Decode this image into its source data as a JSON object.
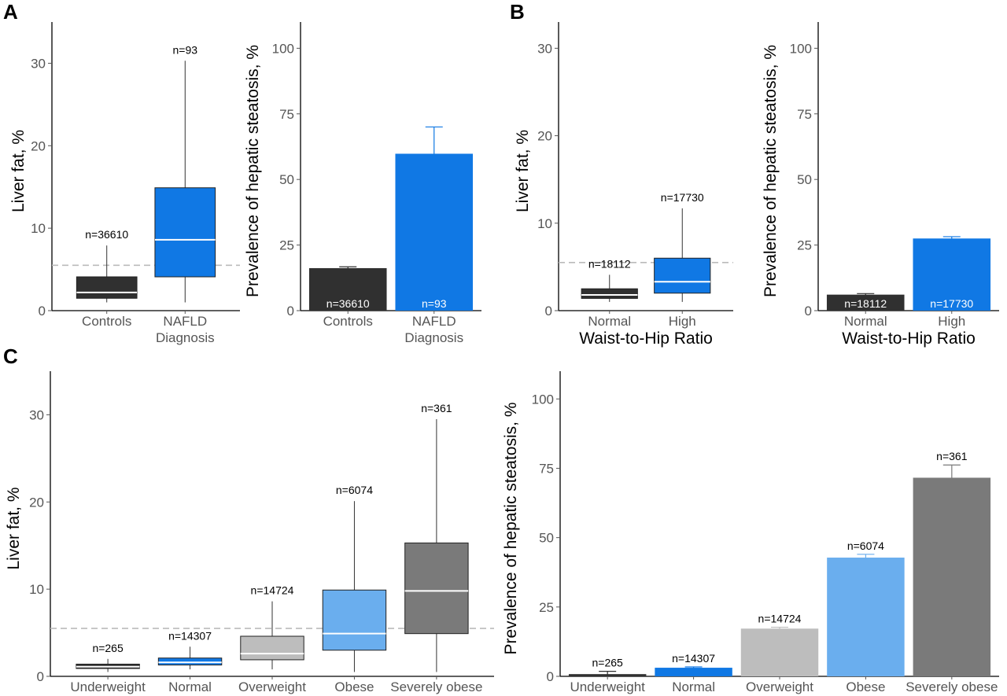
{
  "colors": {
    "dark": "#303030",
    "blue": "#1078e4",
    "lightgray": "#bdbdbd",
    "lightblue": "#6aaeee",
    "gray": "#7a7a7a",
    "refline": "#bbbbbb"
  },
  "panels": {
    "A": "A",
    "B": "B",
    "C": "C"
  },
  "chart_data": [
    {
      "id": "A-box",
      "panel": "A",
      "type": "box",
      "ylabel": "Liver fat, %",
      "xlabel": "",
      "ylim": [
        0,
        35
      ],
      "yticks": [
        0,
        10,
        20,
        30
      ],
      "refline": 5.5,
      "categories": [
        "Controls",
        "NAFLD\nDiagnosis"
      ],
      "boxes": [
        {
          "min": 1.0,
          "q1": 1.5,
          "median": 2.2,
          "q3": 4.1,
          "max": 7.9,
          "n": "n=36610",
          "color": "dark"
        },
        {
          "min": 1.0,
          "q1": 4.1,
          "median": 8.6,
          "q3": 14.9,
          "max": 30.3,
          "n": "n=93",
          "color": "blue"
        }
      ]
    },
    {
      "id": "A-bar",
      "panel": "A",
      "type": "bar",
      "ylabel": "Prevalence of hepatic steatosis, %",
      "xlabel": "",
      "ylim": [
        0,
        110
      ],
      "yticks": [
        0,
        25,
        50,
        75,
        100
      ],
      "categories": [
        "Controls",
        "NAFLD\nDiagnosis"
      ],
      "bars": [
        {
          "value": 16.2,
          "err": 0.5,
          "n": "n=36610",
          "color": "dark",
          "label_pos": "inside"
        },
        {
          "value": 59.8,
          "err": 10.2,
          "n": "n=93",
          "color": "blue",
          "label_pos": "inside"
        }
      ]
    },
    {
      "id": "B-box",
      "panel": "B",
      "type": "box",
      "ylabel": "Liver fat, %",
      "xlabel": "Waist-to-Hip Ratio",
      "ylim": [
        0,
        33
      ],
      "yticks": [
        0,
        10,
        20,
        30
      ],
      "refline": 5.5,
      "categories": [
        "Normal",
        "High"
      ],
      "boxes": [
        {
          "min": 1.0,
          "q1": 1.4,
          "median": 1.8,
          "q3": 2.5,
          "max": 4.1,
          "n": "n=18112",
          "color": "dark"
        },
        {
          "min": 1.0,
          "q1": 2.0,
          "median": 3.3,
          "q3": 6.0,
          "max": 11.7,
          "n": "n=17730",
          "color": "blue"
        }
      ]
    },
    {
      "id": "B-bar",
      "panel": "B",
      "type": "bar",
      "ylabel": "Prevalence of hepatic steatosis, %",
      "xlabel": "Waist-to-Hip Ratio",
      "ylim": [
        0,
        110
      ],
      "yticks": [
        0,
        25,
        50,
        75,
        100
      ],
      "categories": [
        "Normal",
        "High"
      ],
      "bars": [
        {
          "value": 6.1,
          "err": 0.4,
          "n": "n=18112",
          "color": "dark",
          "label_pos": "inside"
        },
        {
          "value": 27.5,
          "err": 0.7,
          "n": "n=17730",
          "color": "blue",
          "label_pos": "inside"
        }
      ]
    },
    {
      "id": "C-box",
      "panel": "C",
      "type": "box",
      "ylabel": "Liver fat, %",
      "xlabel": "",
      "ylim": [
        0,
        35
      ],
      "yticks": [
        0,
        10,
        20,
        30
      ],
      "refline": 5.5,
      "categories": [
        "Underweight",
        "Normal",
        "Overweight",
        "Obese",
        "Severely obese"
      ],
      "boxes": [
        {
          "min": 0.5,
          "q1": 0.9,
          "median": 1.1,
          "q3": 1.4,
          "max": 2.0,
          "n": "n=265",
          "color": "dark"
        },
        {
          "min": 0.8,
          "q1": 1.3,
          "median": 1.6,
          "q3": 2.1,
          "max": 3.4,
          "n": "n=14307",
          "color": "blue"
        },
        {
          "min": 0.8,
          "q1": 1.9,
          "median": 2.6,
          "q3": 4.6,
          "max": 8.6,
          "n": "n=14724",
          "color": "lightgray"
        },
        {
          "min": 0.5,
          "q1": 3.0,
          "median": 4.9,
          "q3": 9.9,
          "max": 20.1,
          "n": "n=6074",
          "color": "lightblue"
        },
        {
          "min": 0.5,
          "q1": 4.9,
          "median": 9.8,
          "q3": 15.3,
          "max": 29.5,
          "n": "n=361",
          "color": "gray"
        }
      ]
    },
    {
      "id": "C-bar",
      "panel": "C",
      "type": "bar",
      "ylabel": "Prevalence of hepatic steatosis, %",
      "xlabel": "",
      "ylim": [
        0,
        110
      ],
      "yticks": [
        0,
        25,
        50,
        75,
        100
      ],
      "categories": [
        "Underweight",
        "Normal",
        "Overweight",
        "Obese",
        "Severely obese"
      ],
      "bars": [
        {
          "value": 0.8,
          "err": 1.0,
          "n": "n=265",
          "color": "dark",
          "label_pos": "above"
        },
        {
          "value": 3.1,
          "err": 0.3,
          "n": "n=14307",
          "color": "blue",
          "label_pos": "above"
        },
        {
          "value": 17.2,
          "err": 0.5,
          "n": "n=14724",
          "color": "lightgray",
          "label_pos": "above"
        },
        {
          "value": 42.8,
          "err": 1.2,
          "n": "n=6074",
          "color": "lightblue",
          "label_pos": "above"
        },
        {
          "value": 71.6,
          "err": 4.6,
          "n": "n=361",
          "color": "gray",
          "label_pos": "above"
        }
      ]
    }
  ]
}
